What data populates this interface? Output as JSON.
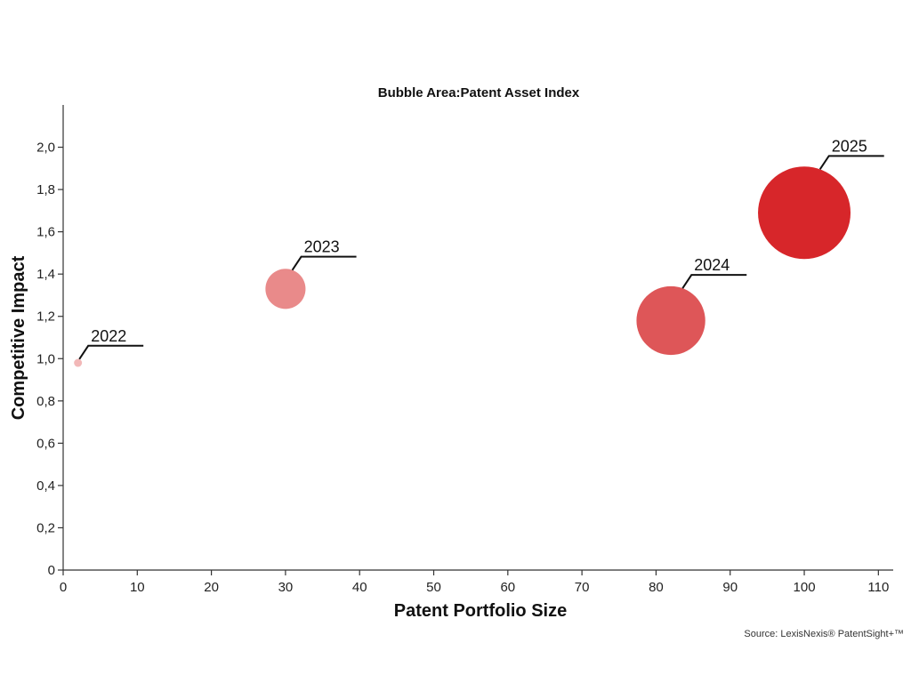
{
  "chart_data": {
    "type": "scatter",
    "title": "Bubble Area:Patent Asset Index",
    "xlabel": "Patent Portfolio Size",
    "ylabel": "Competitive Impact",
    "xlim": [
      0,
      112
    ],
    "ylim": [
      0,
      2.2
    ],
    "x_ticks": [
      0,
      10,
      20,
      30,
      40,
      50,
      60,
      70,
      80,
      90,
      100,
      110
    ],
    "x_tick_labels": [
      "0",
      "10",
      "20",
      "30",
      "40",
      "50",
      "60",
      "70",
      "80",
      "90",
      "100",
      "110"
    ],
    "y_ticks": [
      0,
      0.2,
      0.4,
      0.6,
      0.8,
      1.0,
      1.2,
      1.4,
      1.6,
      1.8,
      2.0
    ],
    "y_tick_labels": [
      "0",
      "0,2",
      "0,4",
      "0,6",
      "0,8",
      "1,0",
      "1,2",
      "1,4",
      "1,6",
      "1,8",
      "2,0"
    ],
    "grid": false,
    "points": [
      {
        "label": "2022",
        "x": 2,
        "y": 0.98,
        "size": 1,
        "color": "#f2b8b8"
      },
      {
        "label": "2023",
        "x": 30,
        "y": 1.33,
        "size": 68,
        "color": "#e98a8a"
      },
      {
        "label": "2024",
        "x": 82,
        "y": 1.18,
        "size": 200,
        "color": "#de5658"
      },
      {
        "label": "2025",
        "x": 100,
        "y": 1.69,
        "size": 362,
        "color": "#d7262a"
      }
    ]
  },
  "source": "Source: LexisNexis® PatentSight+™"
}
